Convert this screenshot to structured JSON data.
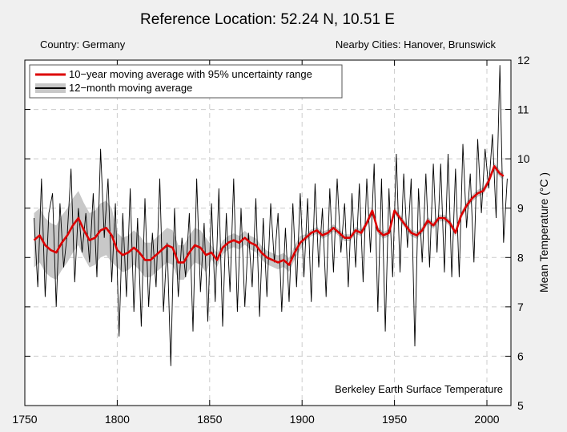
{
  "title": "Reference Location: 52.24 N, 10.51 E",
  "country": "Country: Germany",
  "nearby": "Nearby Cities: Hanover, Brunswick",
  "watermark": "Berkeley Earth Surface Temperature",
  "colors": {
    "page_bg": "#f0f0f0",
    "plot_bg": "#ffffff",
    "smooth": "#dd0000",
    "band": "#c8c8c8",
    "monthly": "#000000",
    "grid": "#cccccc"
  },
  "chart_data": {
    "type": "line",
    "xlabel": "",
    "ylabel": "Mean Temperature (°C )",
    "xlim": [
      1750,
      2013
    ],
    "ylim": [
      5,
      12
    ],
    "x_ticks": [
      "1750",
      "1800",
      "1850",
      "1900",
      "1950",
      "2000"
    ],
    "y_ticks": [
      "5",
      "6",
      "7",
      "8",
      "9",
      "10",
      "11",
      "12"
    ],
    "y_axis_side": "right",
    "grid": true,
    "legend_position": "top-left",
    "series": [
      {
        "name": "10−year moving average with 95% uncertainty range",
        "color": "#dd0000",
        "x": [
          1755,
          1758,
          1761,
          1764,
          1767,
          1770,
          1773,
          1776,
          1779,
          1782,
          1785,
          1788,
          1791,
          1794,
          1797,
          1800,
          1803,
          1806,
          1809,
          1812,
          1815,
          1818,
          1821,
          1824,
          1827,
          1830,
          1833,
          1836,
          1839,
          1842,
          1845,
          1848,
          1851,
          1854,
          1857,
          1860,
          1863,
          1866,
          1869,
          1872,
          1875,
          1878,
          1881,
          1884,
          1887,
          1890,
          1893,
          1896,
          1899,
          1902,
          1905,
          1908,
          1911,
          1914,
          1917,
          1920,
          1923,
          1926,
          1929,
          1932,
          1935,
          1938,
          1941,
          1944,
          1947,
          1950,
          1953,
          1956,
          1959,
          1962,
          1965,
          1968,
          1971,
          1974,
          1977,
          1980,
          1983,
          1986,
          1989,
          1992,
          1995,
          1998,
          2001,
          2004,
          2007,
          2009
        ],
        "y": [
          8.35,
          8.45,
          8.25,
          8.15,
          8.1,
          8.3,
          8.45,
          8.65,
          8.8,
          8.55,
          8.35,
          8.4,
          8.55,
          8.6,
          8.45,
          8.15,
          8.05,
          8.1,
          8.2,
          8.1,
          7.95,
          7.95,
          8.05,
          8.15,
          8.25,
          8.2,
          7.9,
          7.9,
          8.1,
          8.25,
          8.2,
          8.05,
          8.1,
          7.95,
          8.2,
          8.3,
          8.35,
          8.3,
          8.4,
          8.3,
          8.25,
          8.1,
          8.0,
          7.95,
          7.9,
          7.95,
          7.85,
          8.1,
          8.3,
          8.4,
          8.5,
          8.55,
          8.45,
          8.5,
          8.6,
          8.5,
          8.4,
          8.4,
          8.55,
          8.5,
          8.7,
          8.95,
          8.55,
          8.45,
          8.5,
          8.95,
          8.8,
          8.65,
          8.5,
          8.45,
          8.55,
          8.75,
          8.65,
          8.8,
          8.8,
          8.7,
          8.5,
          8.85,
          9.05,
          9.2,
          9.3,
          9.35,
          9.55,
          9.85,
          9.7,
          9.65
        ]
      },
      {
        "name": "12−month moving average",
        "color": "#000000",
        "x": [
          1755,
          1757,
          1759,
          1761,
          1763,
          1765,
          1767,
          1769,
          1771,
          1773,
          1775,
          1777,
          1779,
          1781,
          1783,
          1785,
          1787,
          1789,
          1791,
          1793,
          1795,
          1797,
          1799,
          1801,
          1803,
          1805,
          1807,
          1809,
          1811,
          1813,
          1815,
          1817,
          1819,
          1821,
          1823,
          1825,
          1827,
          1829,
          1831,
          1833,
          1835,
          1837,
          1839,
          1841,
          1843,
          1845,
          1847,
          1849,
          1851,
          1853,
          1855,
          1857,
          1859,
          1861,
          1863,
          1865,
          1867,
          1869,
          1871,
          1873,
          1875,
          1877,
          1879,
          1881,
          1883,
          1885,
          1887,
          1889,
          1891,
          1893,
          1895,
          1897,
          1899,
          1901,
          1903,
          1905,
          1907,
          1909,
          1911,
          1913,
          1915,
          1917,
          1919,
          1921,
          1923,
          1925,
          1927,
          1929,
          1931,
          1933,
          1935,
          1937,
          1939,
          1941,
          1943,
          1945,
          1947,
          1949,
          1951,
          1953,
          1955,
          1957,
          1959,
          1961,
          1963,
          1965,
          1967,
          1969,
          1971,
          1973,
          1975,
          1977,
          1979,
          1981,
          1983,
          1985,
          1987,
          1989,
          1991,
          1993,
          1995,
          1997,
          1999,
          2001,
          2003,
          2005,
          2007,
          2009,
          2011
        ],
        "y": [
          8.8,
          7.4,
          9.6,
          7.2,
          8.9,
          9.3,
          7.0,
          9.1,
          7.8,
          8.5,
          9.8,
          7.5,
          9.0,
          8.1,
          8.9,
          7.9,
          9.3,
          7.6,
          10.2,
          8.4,
          9.6,
          7.5,
          9.1,
          6.4,
          8.9,
          7.2,
          9.4,
          6.9,
          8.8,
          6.6,
          9.2,
          7.0,
          8.5,
          7.4,
          9.6,
          6.9,
          8.3,
          5.8,
          9.0,
          7.2,
          8.4,
          7.6,
          8.9,
          6.5,
          9.6,
          7.3,
          8.7,
          6.7,
          9.1,
          7.1,
          9.4,
          6.6,
          8.9,
          7.3,
          9.6,
          6.9,
          9.0,
          7.0,
          8.5,
          7.4,
          9.2,
          6.8,
          8.8,
          7.2,
          9.1,
          7.9,
          8.9,
          6.9,
          8.6,
          7.1,
          9.1,
          7.4,
          9.3,
          7.6,
          9.2,
          7.1,
          9.5,
          7.8,
          9.0,
          7.2,
          9.4,
          7.7,
          9.6,
          8.1,
          9.1,
          7.4,
          9.3,
          7.8,
          9.5,
          7.5,
          9.6,
          8.1,
          9.9,
          6.9,
          9.6,
          6.5,
          9.4,
          7.6,
          10.1,
          7.7,
          9.7,
          8.2,
          9.6,
          6.2,
          9.4,
          7.9,
          9.7,
          7.8,
          9.9,
          8.1,
          9.9,
          7.7,
          10.1,
          7.6,
          9.8,
          7.6,
          10.3,
          8.6,
          9.7,
          7.9,
          10.4,
          8.9,
          10.2,
          9.4,
          10.5,
          8.8,
          11.9,
          8.3,
          9.6
        ]
      }
    ]
  }
}
